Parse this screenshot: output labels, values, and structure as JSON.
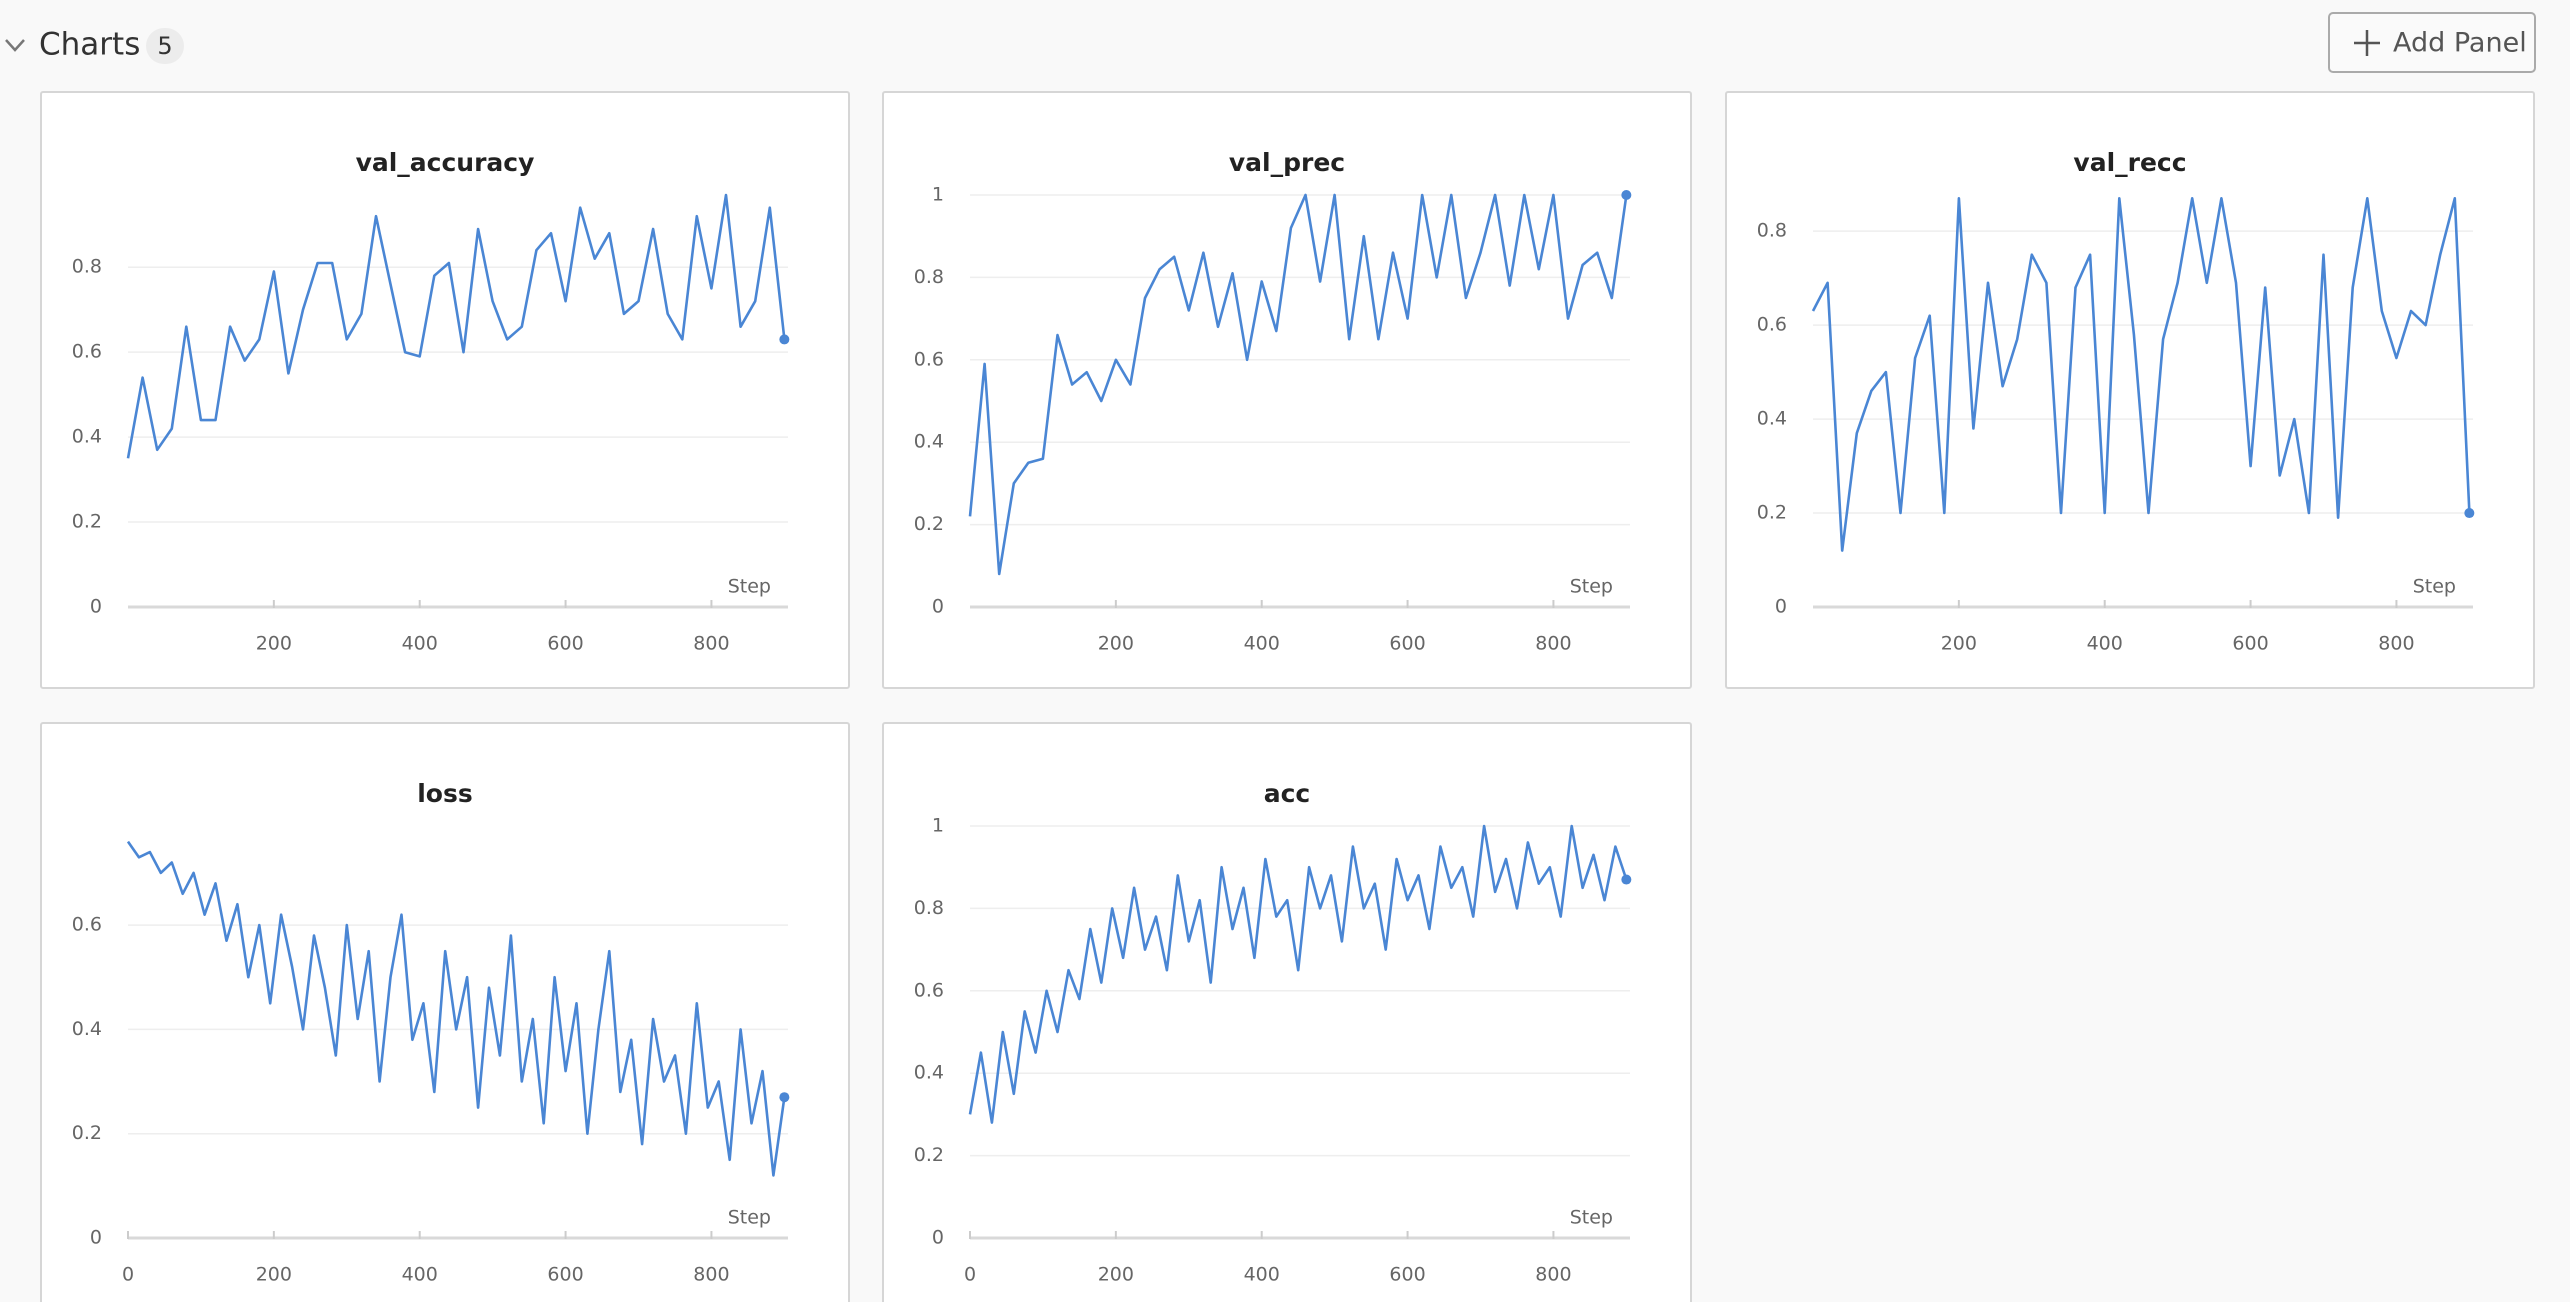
{
  "header": {
    "title": "Charts",
    "count": 5,
    "button": "Add Panel"
  },
  "chart_data": [
    {
      "type": "line",
      "title": "val_accuracy",
      "xlabel": "Step",
      "color": "#4a86d4",
      "x": [
        0,
        20,
        40,
        60,
        80,
        100,
        120,
        140,
        160,
        180,
        200,
        220,
        240,
        260,
        280,
        300,
        320,
        340,
        360,
        380,
        400,
        420,
        440,
        460,
        480,
        500,
        520,
        540,
        560,
        580,
        600,
        620,
        640,
        660,
        680,
        700,
        720,
        740,
        760,
        780,
        800,
        820,
        840,
        860,
        880,
        900
      ],
      "values": [
        0.35,
        0.54,
        0.37,
        0.42,
        0.66,
        0.44,
        0.44,
        0.66,
        0.58,
        0.63,
        0.79,
        0.55,
        0.7,
        0.81,
        0.81,
        0.63,
        0.69,
        0.92,
        0.76,
        0.6,
        0.59,
        0.78,
        0.81,
        0.6,
        0.89,
        0.72,
        0.63,
        0.66,
        0.84,
        0.88,
        0.72,
        0.94,
        0.82,
        0.88,
        0.69,
        0.72,
        0.89,
        0.69,
        0.63,
        0.92,
        0.75,
        0.97,
        0.66,
        0.72,
        0.94,
        0.63
      ],
      "xlim": [
        0,
        905
      ],
      "xticks": [
        200,
        400,
        600,
        800
      ],
      "ylim": [
        0,
        0.97
      ],
      "yticks": [
        0,
        0.2,
        0.4,
        0.6,
        0.8
      ],
      "grid": true
    },
    {
      "type": "line",
      "title": "val_prec",
      "xlabel": "Step",
      "color": "#4a86d4",
      "x": [
        0,
        20,
        40,
        60,
        80,
        100,
        120,
        140,
        160,
        180,
        200,
        220,
        240,
        260,
        280,
        300,
        320,
        340,
        360,
        380,
        400,
        420,
        440,
        460,
        480,
        500,
        520,
        540,
        560,
        580,
        600,
        620,
        640,
        660,
        680,
        700,
        720,
        740,
        760,
        780,
        800,
        820,
        840,
        860,
        880,
        900
      ],
      "values": [
        0.22,
        0.59,
        0.08,
        0.3,
        0.35,
        0.36,
        0.66,
        0.54,
        0.57,
        0.5,
        0.6,
        0.54,
        0.75,
        0.82,
        0.85,
        0.72,
        0.86,
        0.68,
        0.81,
        0.6,
        0.79,
        0.67,
        0.92,
        1,
        0.79,
        1,
        0.65,
        0.9,
        0.65,
        0.86,
        0.7,
        1,
        0.8,
        1,
        0.75,
        0.86,
        1,
        0.78,
        1,
        0.82,
        1,
        0.7,
        0.83,
        0.86,
        0.75,
        1
      ],
      "xlim": [
        0,
        905
      ],
      "xticks": [
        200,
        400,
        600,
        800
      ],
      "ylim": [
        0,
        1
      ],
      "yticks": [
        0,
        0.2,
        0.4,
        0.6,
        0.8,
        1
      ],
      "grid": true
    },
    {
      "type": "line",
      "title": "val_recc",
      "xlabel": "Step",
      "color": "#4a86d4",
      "x": [
        0,
        20,
        40,
        60,
        80,
        100,
        120,
        140,
        160,
        180,
        200,
        220,
        240,
        260,
        280,
        300,
        320,
        340,
        360,
        380,
        400,
        420,
        440,
        460,
        480,
        500,
        520,
        540,
        560,
        580,
        600,
        620,
        640,
        660,
        680,
        700,
        720,
        740,
        760,
        780,
        800,
        820,
        840,
        860,
        880,
        900
      ],
      "values": [
        0.63,
        0.69,
        0.12,
        0.37,
        0.46,
        0.5,
        0.2,
        0.53,
        0.62,
        0.2,
        0.87,
        0.38,
        0.69,
        0.47,
        0.57,
        0.75,
        0.69,
        0.2,
        0.68,
        0.75,
        0.2,
        0.87,
        0.58,
        0.2,
        0.57,
        0.69,
        0.87,
        0.69,
        0.87,
        0.69,
        0.3,
        0.68,
        0.28,
        0.4,
        0.2,
        0.75,
        0.19,
        0.68,
        0.87,
        0.63,
        0.53,
        0.63,
        0.6,
        0.75,
        0.87,
        0.2
      ],
      "xlim": [
        0,
        905
      ],
      "xticks": [
        200,
        400,
        600,
        800
      ],
      "ylim": [
        0,
        0.877
      ],
      "yticks": [
        0,
        0.2,
        0.4,
        0.6,
        0.8
      ],
      "grid": true
    },
    {
      "type": "line",
      "title": "loss",
      "xlabel": "Step",
      "color": "#4a86d4",
      "x": [
        0,
        15,
        30,
        45,
        60,
        75,
        90,
        105,
        120,
        135,
        150,
        165,
        180,
        195,
        210,
        225,
        240,
        255,
        270,
        285,
        300,
        315,
        330,
        345,
        360,
        375,
        390,
        405,
        420,
        435,
        450,
        465,
        480,
        495,
        510,
        525,
        540,
        555,
        570,
        585,
        600,
        615,
        630,
        645,
        660,
        675,
        690,
        705,
        720,
        735,
        750,
        765,
        780,
        795,
        810,
        825,
        840,
        855,
        870,
        885,
        900
      ],
      "values": [
        0.76,
        0.73,
        0.74,
        0.7,
        0.72,
        0.66,
        0.7,
        0.62,
        0.68,
        0.57,
        0.64,
        0.5,
        0.6,
        0.45,
        0.62,
        0.52,
        0.4,
        0.58,
        0.48,
        0.35,
        0.6,
        0.42,
        0.55,
        0.3,
        0.5,
        0.62,
        0.38,
        0.45,
        0.28,
        0.55,
        0.4,
        0.5,
        0.25,
        0.48,
        0.35,
        0.58,
        0.3,
        0.42,
        0.22,
        0.5,
        0.32,
        0.45,
        0.2,
        0.4,
        0.55,
        0.28,
        0.38,
        0.18,
        0.42,
        0.3,
        0.35,
        0.2,
        0.45,
        0.25,
        0.3,
        0.15,
        0.4,
        0.22,
        0.32,
        0.12,
        0.27
      ],
      "xlim": [
        0,
        905
      ],
      "xticks": [
        0,
        200,
        400,
        600,
        800
      ],
      "ylim": [
        0,
        0.79
      ],
      "yticks": [
        0,
        0.2,
        0.4,
        0.6
      ],
      "grid": true
    },
    {
      "type": "line",
      "title": "acc",
      "xlabel": "Step",
      "color": "#4a86d4",
      "x": [
        0,
        15,
        30,
        45,
        60,
        75,
        90,
        105,
        120,
        135,
        150,
        165,
        180,
        195,
        210,
        225,
        240,
        255,
        270,
        285,
        300,
        315,
        330,
        345,
        360,
        375,
        390,
        405,
        420,
        435,
        450,
        465,
        480,
        495,
        510,
        525,
        540,
        555,
        570,
        585,
        600,
        615,
        630,
        645,
        660,
        675,
        690,
        705,
        720,
        735,
        750,
        765,
        780,
        795,
        810,
        825,
        840,
        855,
        870,
        885,
        900
      ],
      "values": [
        0.3,
        0.45,
        0.28,
        0.5,
        0.35,
        0.55,
        0.45,
        0.6,
        0.5,
        0.65,
        0.58,
        0.75,
        0.62,
        0.8,
        0.68,
        0.85,
        0.7,
        0.78,
        0.65,
        0.88,
        0.72,
        0.82,
        0.62,
        0.9,
        0.75,
        0.85,
        0.68,
        0.92,
        0.78,
        0.82,
        0.65,
        0.9,
        0.8,
        0.88,
        0.72,
        0.95,
        0.8,
        0.86,
        0.7,
        0.92,
        0.82,
        0.88,
        0.75,
        0.95,
        0.85,
        0.9,
        0.78,
        1.0,
        0.84,
        0.92,
        0.8,
        0.96,
        0.86,
        0.9,
        0.78,
        1.0,
        0.85,
        0.93,
        0.82,
        0.95,
        0.87
      ],
      "xlim": [
        0,
        905
      ],
      "xticks": [
        0,
        200,
        400,
        600,
        800
      ],
      "ylim": [
        0,
        1
      ],
      "yticks": [
        0,
        0.2,
        0.4,
        0.6,
        0.8,
        1
      ],
      "grid": true
    }
  ]
}
